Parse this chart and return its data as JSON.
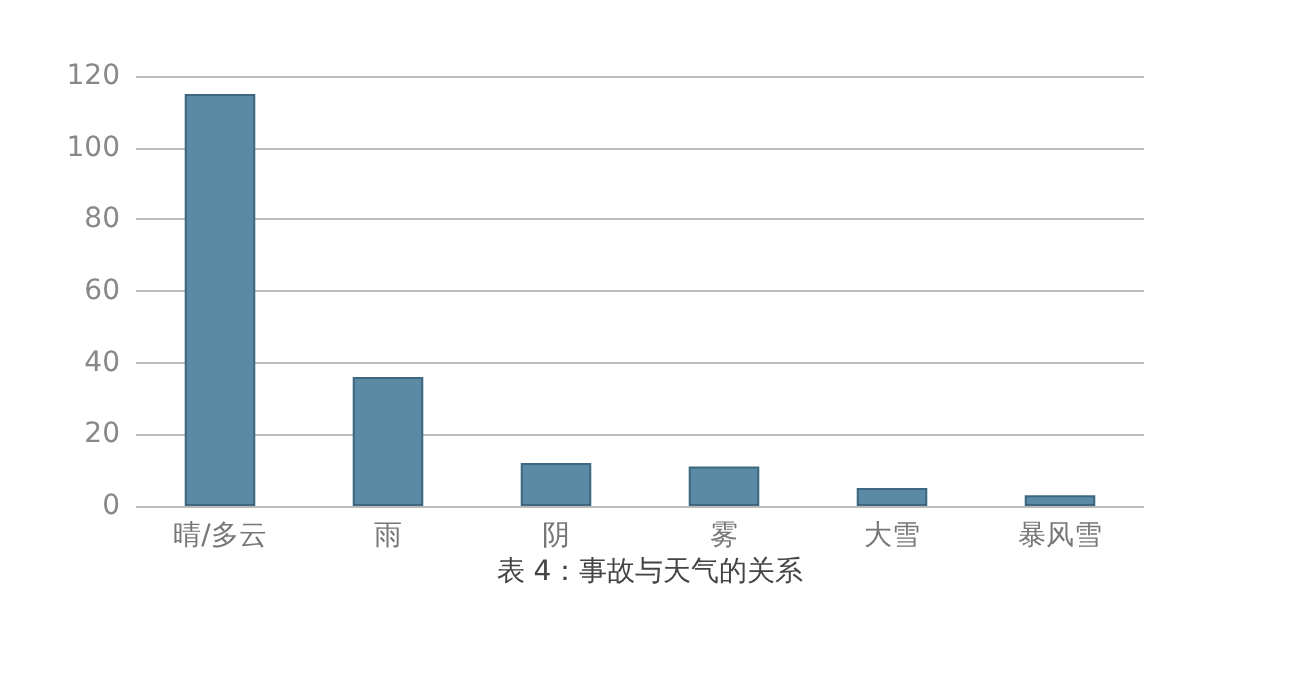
{
  "chart_data": {
    "type": "bar",
    "categories": [
      "晴/多云",
      "雨",
      "阴",
      "雾",
      "大雪",
      "暴风雪"
    ],
    "values": [
      115,
      36,
      12,
      11,
      5,
      3
    ],
    "color": "#5a8aa4",
    "ylim": [
      0,
      120
    ],
    "yticks": [
      0,
      20,
      40,
      60,
      80,
      100,
      120
    ],
    "grid": "y",
    "annotations": [
      "表 4：事故与天气的关系"
    ]
  }
}
